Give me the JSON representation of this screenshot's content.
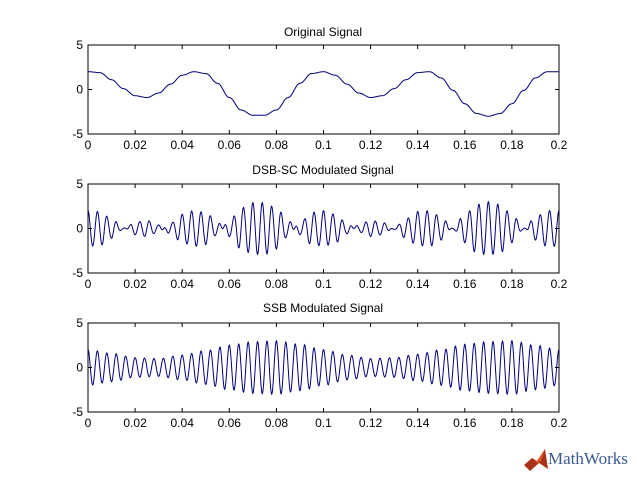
{
  "chart_data": [
    {
      "type": "line",
      "title": "Original Signal",
      "xlabel": "",
      "ylabel": "",
      "xlim": [
        0,
        0.2
      ],
      "ylim": [
        -5,
        5
      ],
      "x_ticks": [
        0,
        0.02,
        0.04,
        0.06,
        0.08,
        0.1,
        0.12,
        0.14,
        0.16,
        0.18,
        0.2
      ],
      "x_tick_labels": [
        "0",
        "0.02",
        "0.04",
        "0.06",
        "0.08",
        "0.1",
        "0.12",
        "0.14",
        "0.16",
        "0.18",
        "0.2"
      ],
      "y_ticks": [
        -5,
        0,
        5
      ],
      "y_tick_labels": [
        "-5",
        "0",
        "5"
      ],
      "grid": false,
      "series": [
        {
          "color": "#00007f",
          "x": [
            0,
            0.005,
            0.01,
            0.015,
            0.02,
            0.025,
            0.03,
            0.035,
            0.04,
            0.045,
            0.05,
            0.055,
            0.06,
            0.065,
            0.07,
            0.075,
            0.08,
            0.085,
            0.09,
            0.095,
            0.1,
            0.105,
            0.11,
            0.115,
            0.12,
            0.125,
            0.13,
            0.135,
            0.14,
            0.145,
            0.15,
            0.155,
            0.16,
            0.165,
            0.17,
            0.175,
            0.18,
            0.185,
            0.19,
            0.195,
            0.2
          ],
          "y": [
            2.0,
            1.9,
            1.1,
            0.1,
            -0.7,
            -0.9,
            -0.4,
            0.6,
            1.6,
            2.0,
            1.8,
            0.7,
            -0.9,
            -2.3,
            -2.9,
            -2.9,
            -2.3,
            -0.9,
            0.7,
            1.8,
            2.0,
            1.6,
            0.6,
            -0.4,
            -0.9,
            -0.7,
            0.1,
            1.1,
            1.9,
            2.0,
            1.3,
            -0.1,
            -1.6,
            -2.7,
            -3.0,
            -2.7,
            -1.6,
            -0.1,
            1.3,
            2.0,
            2.0
          ]
        }
      ]
    },
    {
      "type": "line",
      "title": "DSB-SC Modulated Signal",
      "xlabel": "",
      "ylabel": "",
      "xlim": [
        0,
        0.2
      ],
      "ylim": [
        -5,
        5
      ],
      "x_ticks": [
        0,
        0.02,
        0.04,
        0.06,
        0.08,
        0.1,
        0.12,
        0.14,
        0.16,
        0.18,
        0.2
      ],
      "x_tick_labels": [
        "0",
        "0.02",
        "0.04",
        "0.06",
        "0.08",
        "0.1",
        "0.12",
        "0.14",
        "0.16",
        "0.18",
        "0.2"
      ],
      "y_ticks": [
        -5,
        0,
        5
      ],
      "y_tick_labels": [
        "-5",
        "0",
        "5"
      ],
      "grid": false,
      "carrier_frequency_hz": 250,
      "series": [
        {
          "color": "#00007f",
          "envelope_x": [
            0,
            0.005,
            0.01,
            0.015,
            0.02,
            0.025,
            0.03,
            0.035,
            0.04,
            0.045,
            0.05,
            0.055,
            0.06,
            0.065,
            0.07,
            0.075,
            0.08,
            0.085,
            0.09,
            0.095,
            0.1,
            0.105,
            0.11,
            0.115,
            0.12,
            0.125,
            0.13,
            0.135,
            0.14,
            0.145,
            0.15,
            0.155,
            0.16,
            0.165,
            0.17,
            0.175,
            0.18,
            0.185,
            0.19,
            0.195,
            0.2
          ],
          "envelope_y": [
            2.0,
            1.9,
            1.1,
            0.1,
            -0.7,
            -0.9,
            -0.4,
            0.6,
            1.6,
            2.0,
            1.8,
            0.7,
            -0.9,
            -2.3,
            -2.9,
            -2.9,
            -2.3,
            -0.9,
            0.7,
            1.8,
            2.0,
            1.6,
            0.6,
            -0.4,
            -0.9,
            -0.7,
            0.1,
            1.1,
            1.9,
            2.0,
            1.3,
            -0.1,
            -1.6,
            -2.7,
            -3.0,
            -2.7,
            -1.6,
            -0.1,
            1.3,
            2.0,
            2.0
          ]
        }
      ]
    },
    {
      "type": "line",
      "title": "SSB Modulated Signal",
      "xlabel": "",
      "ylabel": "",
      "xlim": [
        0,
        0.2
      ],
      "ylim": [
        -5,
        5
      ],
      "x_ticks": [
        0,
        0.02,
        0.04,
        0.06,
        0.08,
        0.1,
        0.12,
        0.14,
        0.16,
        0.18,
        0.2
      ],
      "x_tick_labels": [
        "0",
        "0.02",
        "0.04",
        "0.06",
        "0.08",
        "0.1",
        "0.12",
        "0.14",
        "0.16",
        "0.18",
        "0.2"
      ],
      "y_ticks": [
        -5,
        0,
        5
      ],
      "y_tick_labels": [
        "-5",
        "0",
        "5"
      ],
      "grid": false,
      "carrier_frequency_hz": 250,
      "series": [
        {
          "color": "#00007f",
          "envelope_x": [
            0,
            0.01,
            0.02,
            0.03,
            0.04,
            0.05,
            0.06,
            0.07,
            0.08,
            0.09,
            0.1,
            0.11,
            0.12,
            0.13,
            0.14,
            0.15,
            0.16,
            0.17,
            0.18,
            0.19,
            0.2
          ],
          "envelope_y": [
            2.0,
            1.6,
            1.1,
            1.0,
            1.4,
            1.9,
            2.5,
            2.9,
            3.0,
            2.6,
            2.0,
            1.4,
            1.0,
            1.1,
            1.5,
            2.0,
            2.6,
            2.9,
            3.0,
            2.5,
            2.0
          ]
        }
      ]
    }
  ],
  "logo": {
    "text": "MathWorks",
    "icon": "mathworks-membrane-logo",
    "colors": {
      "text": "#3a5a92",
      "peak": "#e0582a",
      "base": "#a83318"
    }
  }
}
